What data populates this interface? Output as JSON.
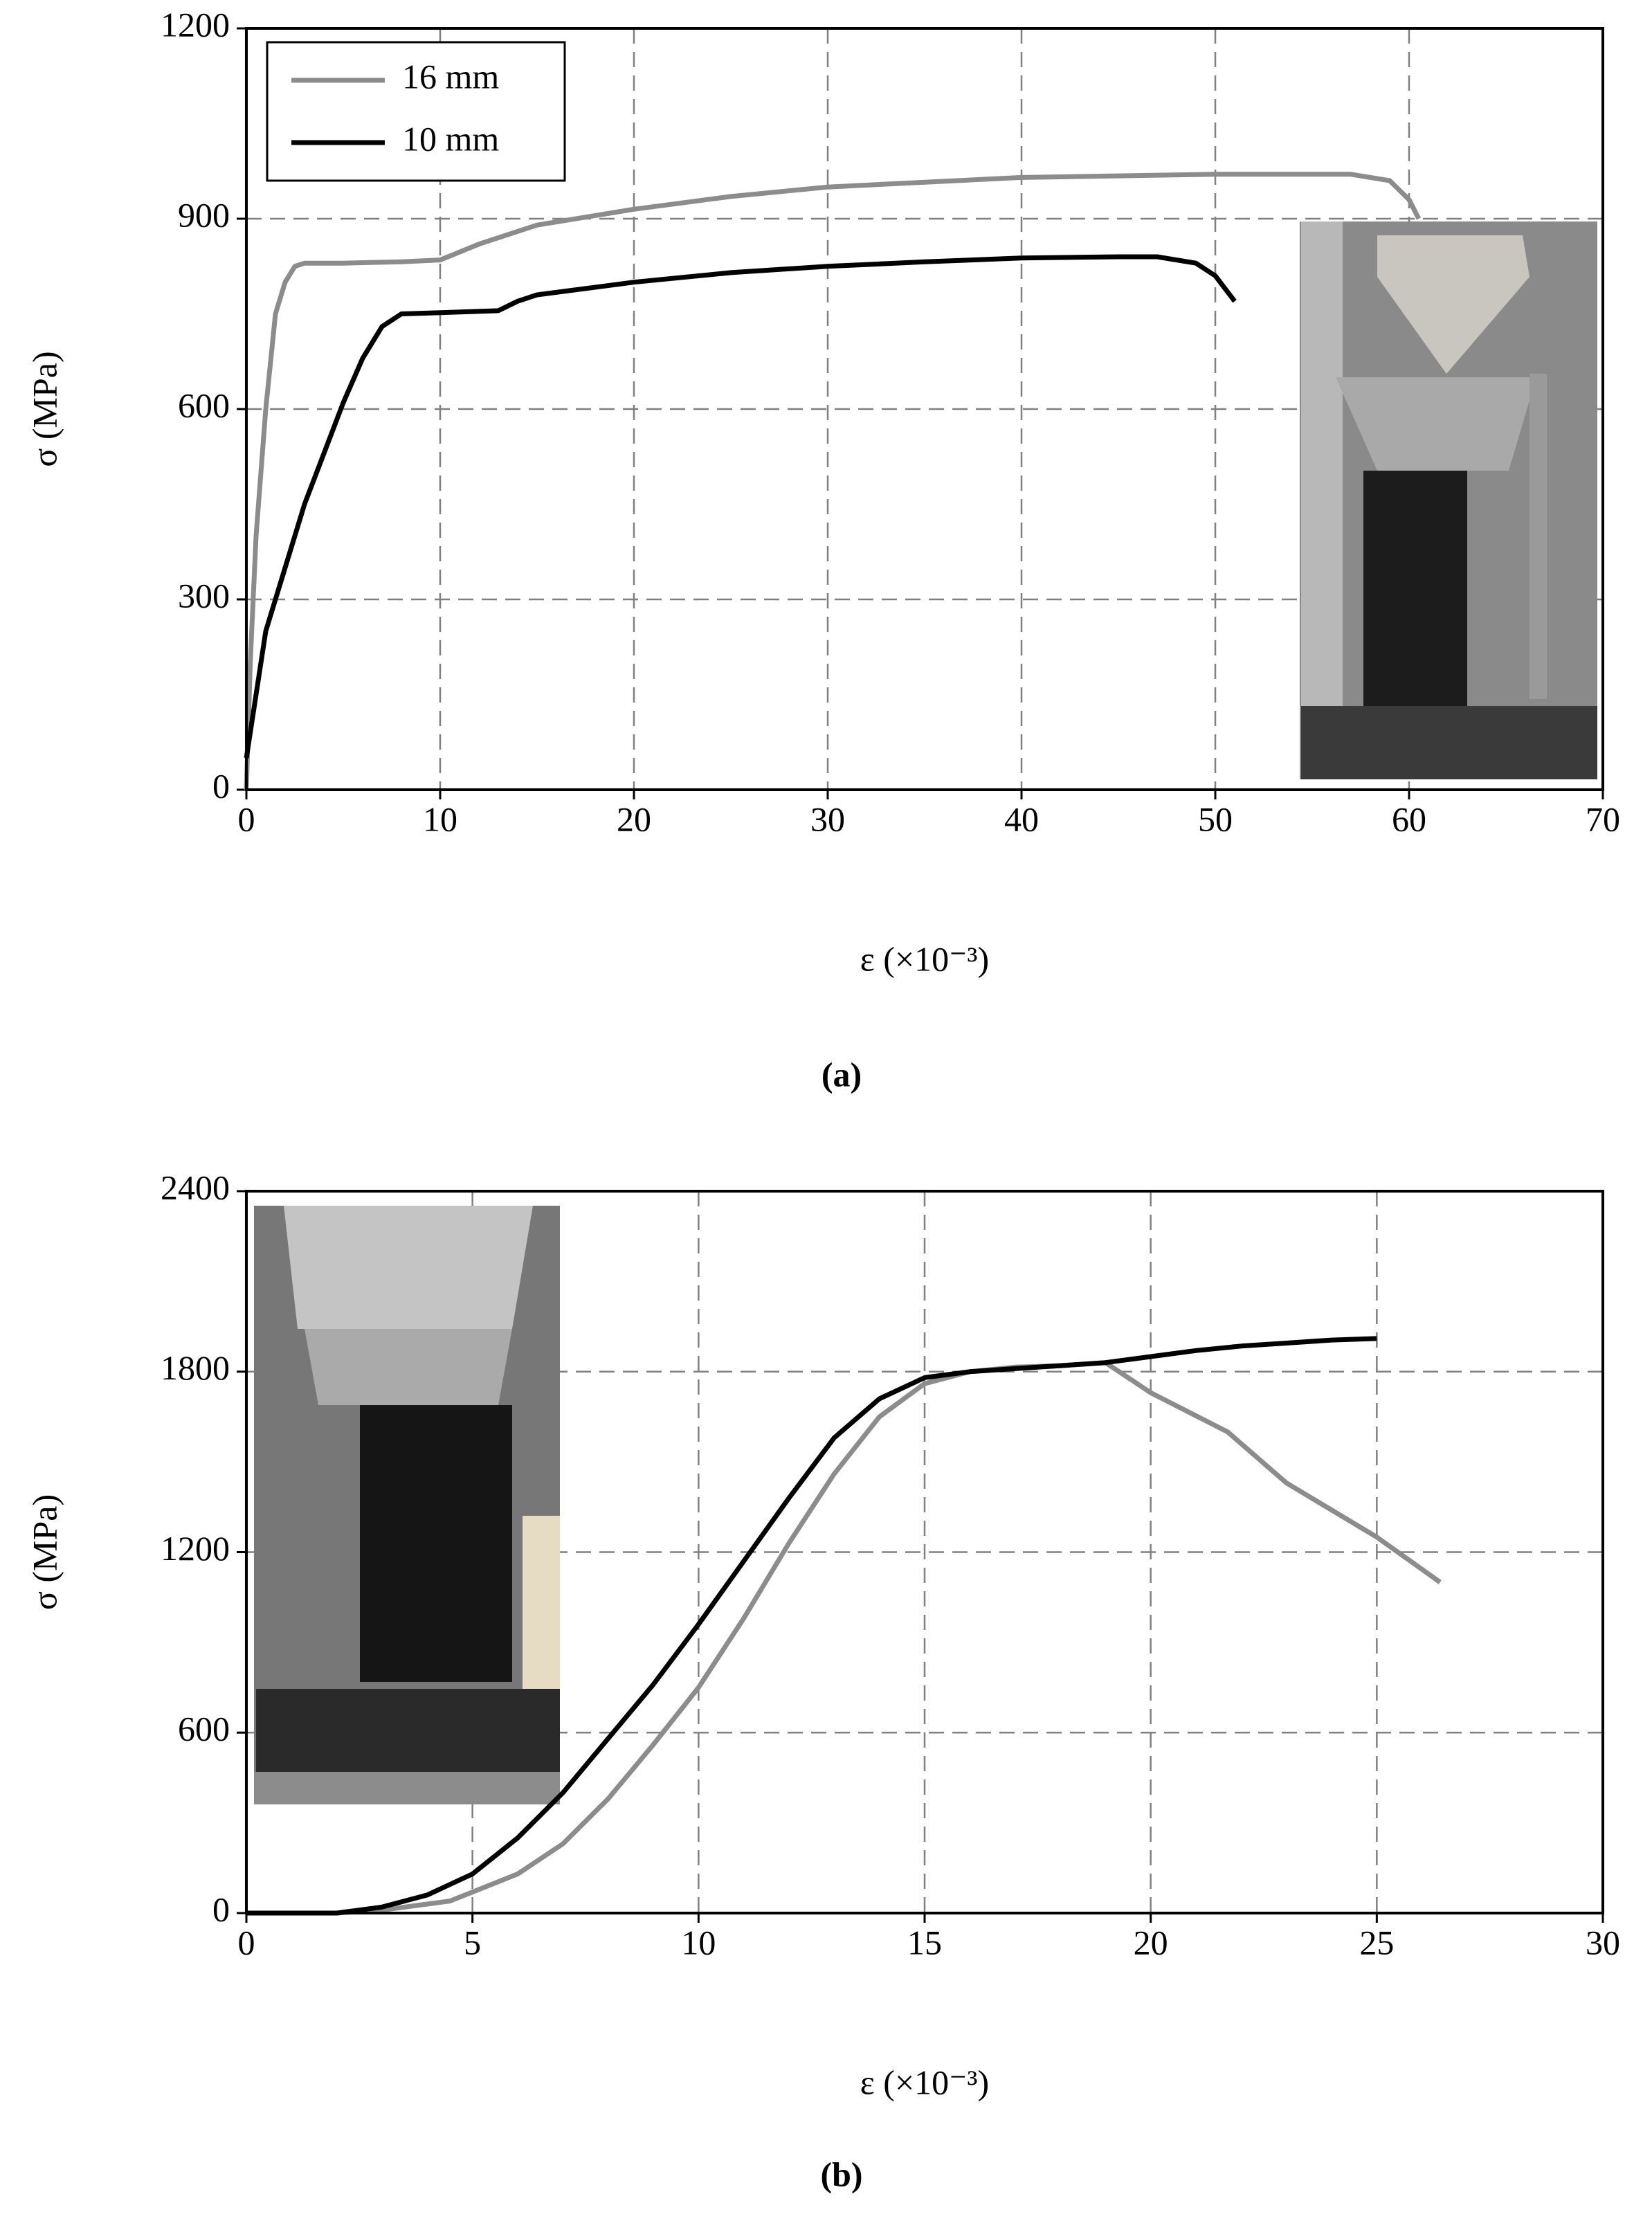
{
  "chart_data": [
    {
      "type": "line",
      "label": "(a)",
      "xlabel": "ε (×10⁻³)",
      "ylabel": "σ (MPa)",
      "xlim": [
        0,
        70
      ],
      "xticks": [
        0,
        10,
        20,
        30,
        40,
        50,
        60,
        70
      ],
      "ylim": [
        0,
        1200
      ],
      "yticks": [
        0,
        300,
        600,
        900,
        1200
      ],
      "grid": true,
      "legend": "upper left",
      "series": [
        {
          "name": "16 mm",
          "color": "#8c8c8c",
          "x": [
            0,
            0.2,
            0.5,
            1,
            1.5,
            2,
            2.5,
            3,
            5,
            8,
            10,
            12,
            15,
            20,
            25,
            30,
            40,
            50,
            57,
            59,
            60,
            60.5
          ],
          "values": [
            0,
            200,
            400,
            600,
            750,
            800,
            825,
            830,
            830,
            832,
            835,
            860,
            890,
            915,
            935,
            950,
            965,
            970,
            970,
            960,
            930,
            900
          ]
        },
        {
          "name": "10 mm",
          "color": "#000000",
          "x": [
            0,
            0.5,
            1,
            2,
            3,
            4,
            5,
            6,
            7,
            8,
            10,
            13,
            14,
            15,
            20,
            25,
            30,
            35,
            40,
            45,
            47,
            49,
            50,
            51
          ],
          "values": [
            50,
            150,
            250,
            350,
            450,
            530,
            610,
            680,
            730,
            750,
            752,
            755,
            770,
            780,
            800,
            815,
            825,
            832,
            838,
            840,
            840,
            830,
            810,
            770
          ]
        }
      ]
    },
    {
      "type": "line",
      "label": "(b)",
      "xlabel": "ε (×10⁻³)",
      "ylabel": "σ (MPa)",
      "xlim": [
        0,
        30
      ],
      "xticks": [
        0,
        5,
        10,
        15,
        20,
        25,
        30
      ],
      "ylim": [
        0,
        2400
      ],
      "yticks": [
        0,
        600,
        1200,
        1800,
        2400
      ],
      "grid": true,
      "series": [
        {
          "color": "#8c8c8c",
          "x": [
            0,
            2,
            3,
            4,
            4.5,
            5,
            6,
            7,
            8,
            9,
            10,
            11,
            12,
            13,
            14,
            15,
            16,
            17,
            18,
            19,
            20,
            21.7,
            23,
            25,
            26.4
          ],
          "values": [
            0,
            0,
            10,
            30,
            40,
            70,
            130,
            230,
            380,
            560,
            750,
            980,
            1230,
            1460,
            1650,
            1760,
            1800,
            1815,
            1820,
            1830,
            1730,
            1600,
            1430,
            1250,
            1100
          ]
        },
        {
          "color": "#000000",
          "x": [
            0,
            2,
            3,
            4,
            5,
            6,
            7,
            8,
            9,
            10,
            11,
            12,
            13,
            14,
            15,
            16,
            17,
            18,
            19,
            20,
            21,
            22,
            23,
            24,
            25
          ],
          "values": [
            0,
            0,
            20,
            60,
            130,
            250,
            400,
            580,
            760,
            960,
            1170,
            1380,
            1580,
            1710,
            1780,
            1800,
            1810,
            1820,
            1830,
            1850,
            1870,
            1885,
            1895,
            1905,
            1910
          ]
        }
      ]
    }
  ]
}
